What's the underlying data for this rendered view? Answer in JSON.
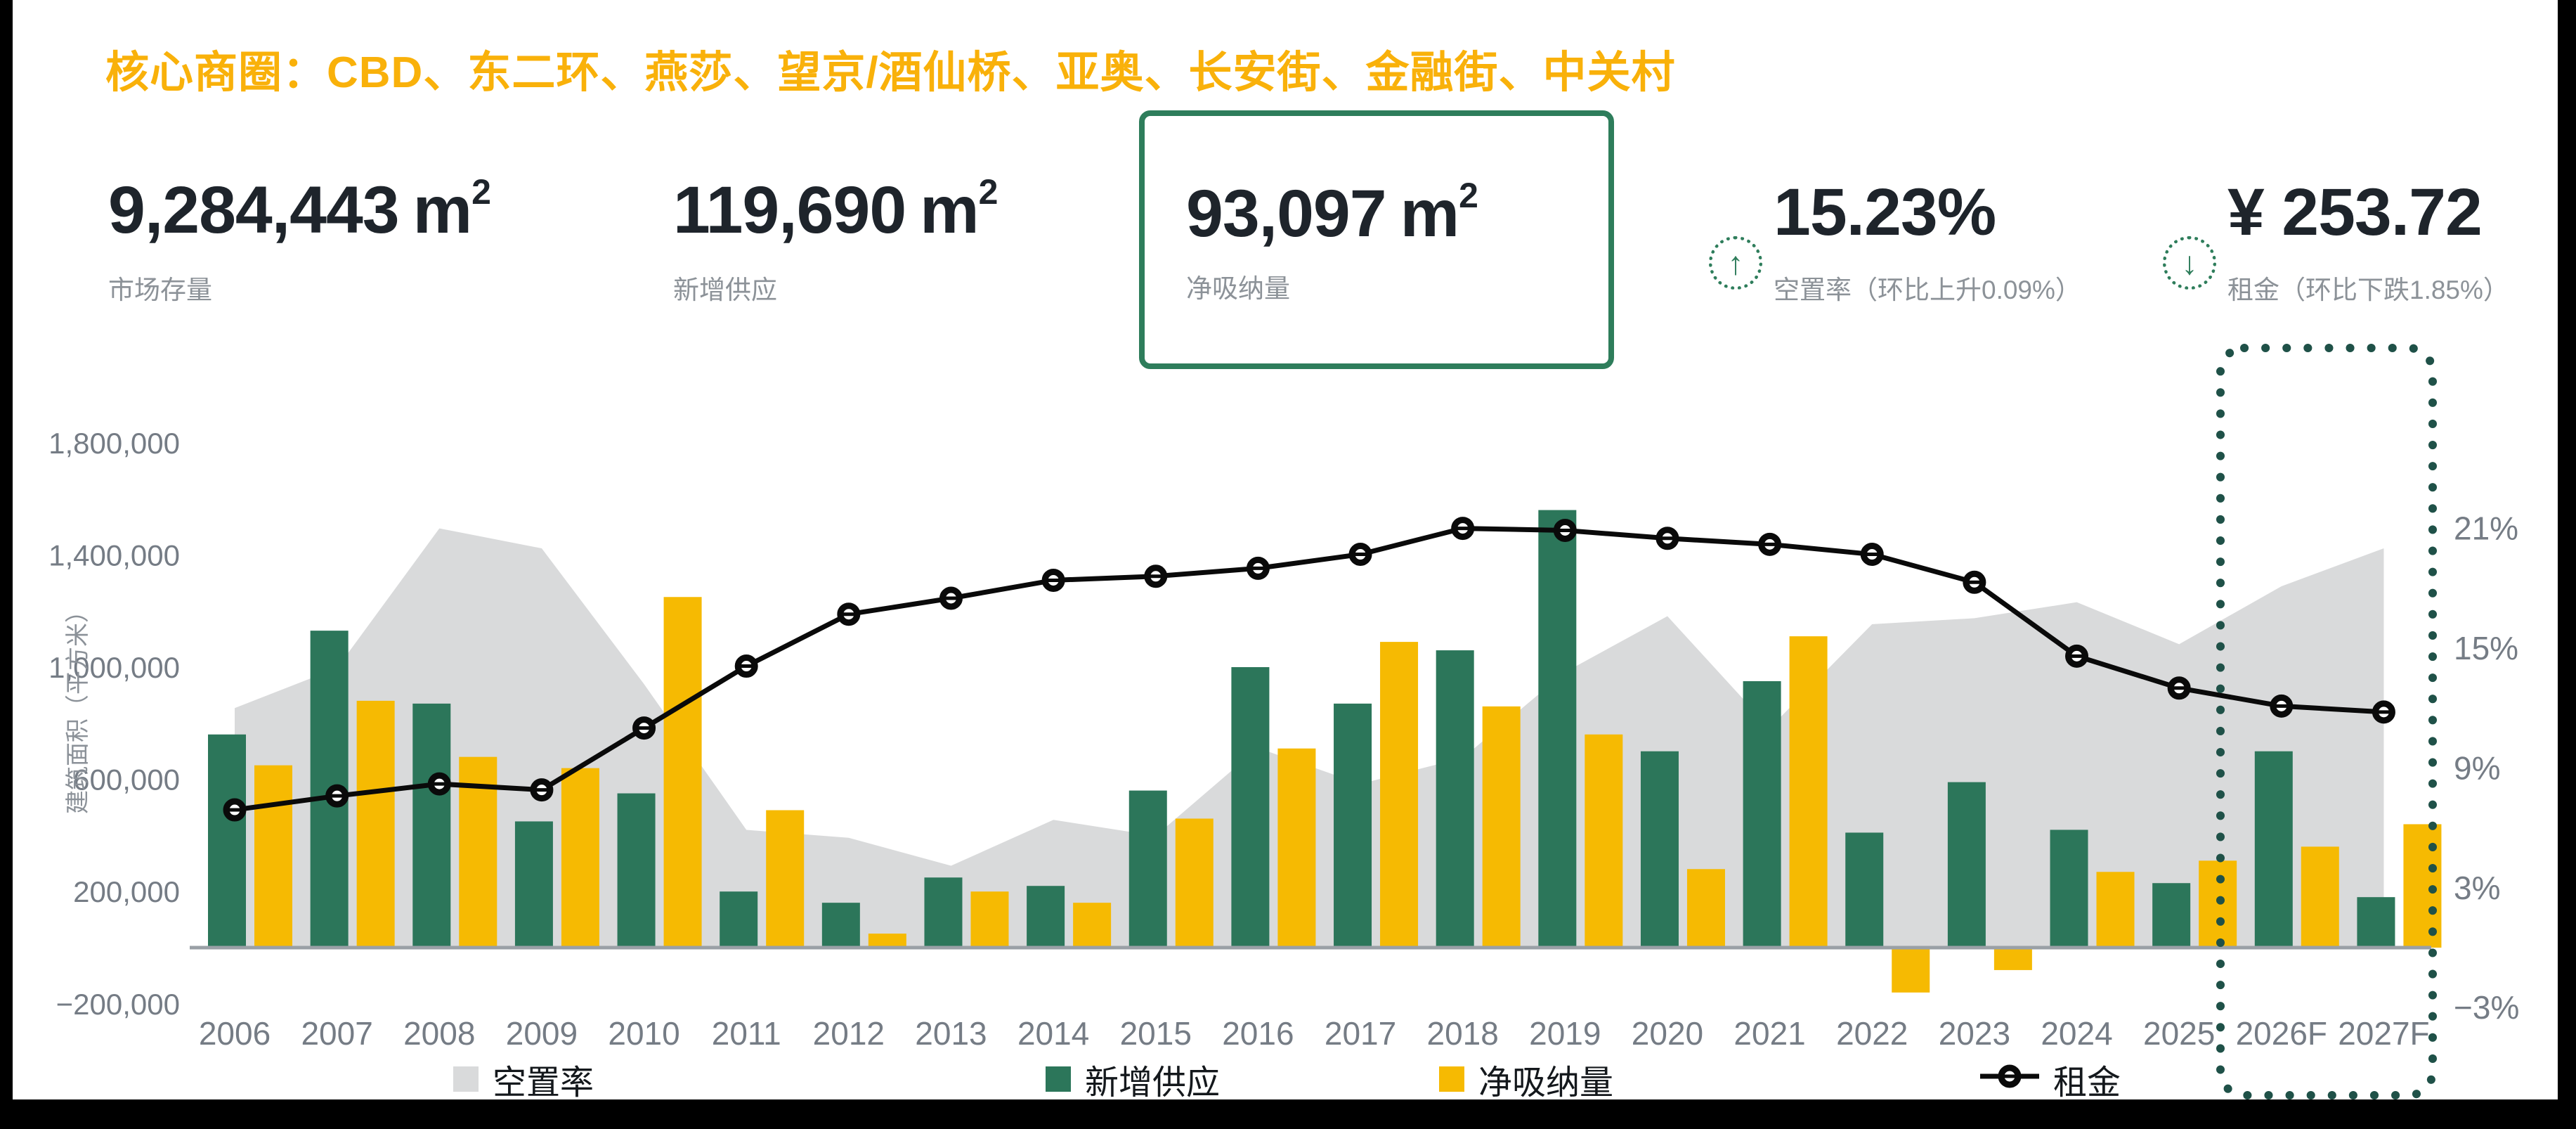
{
  "frame": {
    "background": "#000000",
    "slide_background": "#ffffff"
  },
  "title": {
    "text": "核心商圈：CBD、东二环、燕莎、望京/酒仙桥、亚奥、长安街、金融街、中关村",
    "color": "#F9B10A"
  },
  "kpis": [
    {
      "value": "9,284,443",
      "unit_base": "m",
      "unit_sup": "2",
      "label": "市场存量"
    },
    {
      "value": "119,690",
      "unit_base": "m",
      "unit_sup": "2",
      "label": "新增供应"
    },
    {
      "value": "93,097",
      "unit_base": "m",
      "unit_sup": "2",
      "label": "净吸纳量",
      "boxed": true,
      "box_color": "#2E7D5B"
    },
    {
      "value": "15.23%",
      "label": "空置率（环比上升0.09%）",
      "icon": "arrow-up-circle-icon",
      "arrow_glyph": "↑",
      "icon_color": "#2E7D5B"
    },
    {
      "value": "¥ 253.72",
      "label": "租金（环比下跌1.85%）",
      "icon": "arrow-down-circle-icon",
      "arrow_glyph": "↓",
      "icon_color": "#2E7D5B"
    }
  ],
  "legend": [
    {
      "label": "空置率",
      "marker": "square",
      "swatch_color": "#D9DADB"
    },
    {
      "label": "新增供应",
      "marker": "square",
      "swatch_color": "#2C765A"
    },
    {
      "label": "净吸纳量",
      "marker": "square",
      "swatch_color": "#F6BA02"
    },
    {
      "label": "租金",
      "marker": "line-circle",
      "swatch_color": "#0a0a0a"
    }
  ],
  "chart_data": {
    "type": "combo",
    "categories": [
      "2006",
      "2007",
      "2008",
      "2009",
      "2010",
      "2011",
      "2012",
      "2013",
      "2014",
      "2015",
      "2016",
      "2017",
      "2018",
      "2019",
      "2020",
      "2021",
      "2022",
      "2023",
      "2024",
      "2025",
      "2026F",
      "2027F"
    ],
    "series": [
      {
        "name": "空置率",
        "type": "area",
        "axis": "right",
        "unit": "%",
        "color": "#D9DADB",
        "values": [
          12.0,
          14.0,
          21.0,
          20.0,
          13.2,
          5.9,
          5.5,
          4.1,
          6.4,
          5.6,
          10.0,
          8.2,
          9.5,
          13.8,
          16.6,
          11.0,
          16.2,
          16.5,
          17.3,
          15.2,
          18.1,
          20.0
        ]
      },
      {
        "name": "新增供应",
        "type": "bar",
        "axis": "left",
        "unit": "平方米",
        "color": "#2C765A",
        "values": [
          760000,
          1130000,
          870000,
          450000,
          550000,
          200000,
          160000,
          250000,
          220000,
          560000,
          1000000,
          870000,
          1060000,
          1560000,
          700000,
          950000,
          410000,
          590000,
          420000,
          230000,
          700000,
          180000
        ]
      },
      {
        "name": "净吸纳量",
        "type": "bar",
        "axis": "left",
        "unit": "平方米",
        "color": "#F6BA02",
        "values": [
          650000,
          880000,
          680000,
          640000,
          1250000,
          490000,
          50000,
          200000,
          160000,
          460000,
          710000,
          1090000,
          860000,
          760000,
          280000,
          1110000,
          -160000,
          -80000,
          270000,
          310000,
          360000,
          440000
        ]
      },
      {
        "name": "租金",
        "type": "line",
        "axis": "right",
        "color": "#0a0a0a",
        "values": [
          6.9,
          7.6,
          8.2,
          7.9,
          11.0,
          14.1,
          16.7,
          17.5,
          18.4,
          18.6,
          19.0,
          19.7,
          21.0,
          20.9,
          20.5,
          20.2,
          19.7,
          18.3,
          14.6,
          13.0,
          12.1,
          11.8
        ]
      }
    ],
    "left_axis": {
      "title": "建筑面积（平方米）",
      "tick_values": [
        1800000,
        1400000,
        1000000,
        600000,
        200000,
        -200000
      ],
      "tick_labels": [
        "1,800,000",
        "1,400,000",
        "1,000,000",
        "600,000",
        "200,000",
        "−200,000"
      ],
      "range": [
        -200000,
        1800000
      ]
    },
    "right_axis": {
      "unit": "%",
      "tick_values": [
        21,
        15,
        9,
        3,
        -3
      ],
      "tick_labels": [
        "21%",
        "15%",
        "9%",
        "3%",
        "−3%"
      ],
      "range": [
        -3,
        21
      ]
    },
    "forecast_box": {
      "categories": [
        "2026F",
        "2027F"
      ],
      "color": "#1F5148",
      "style": "dotted"
    },
    "grid": false,
    "legend_position": "bottom"
  }
}
